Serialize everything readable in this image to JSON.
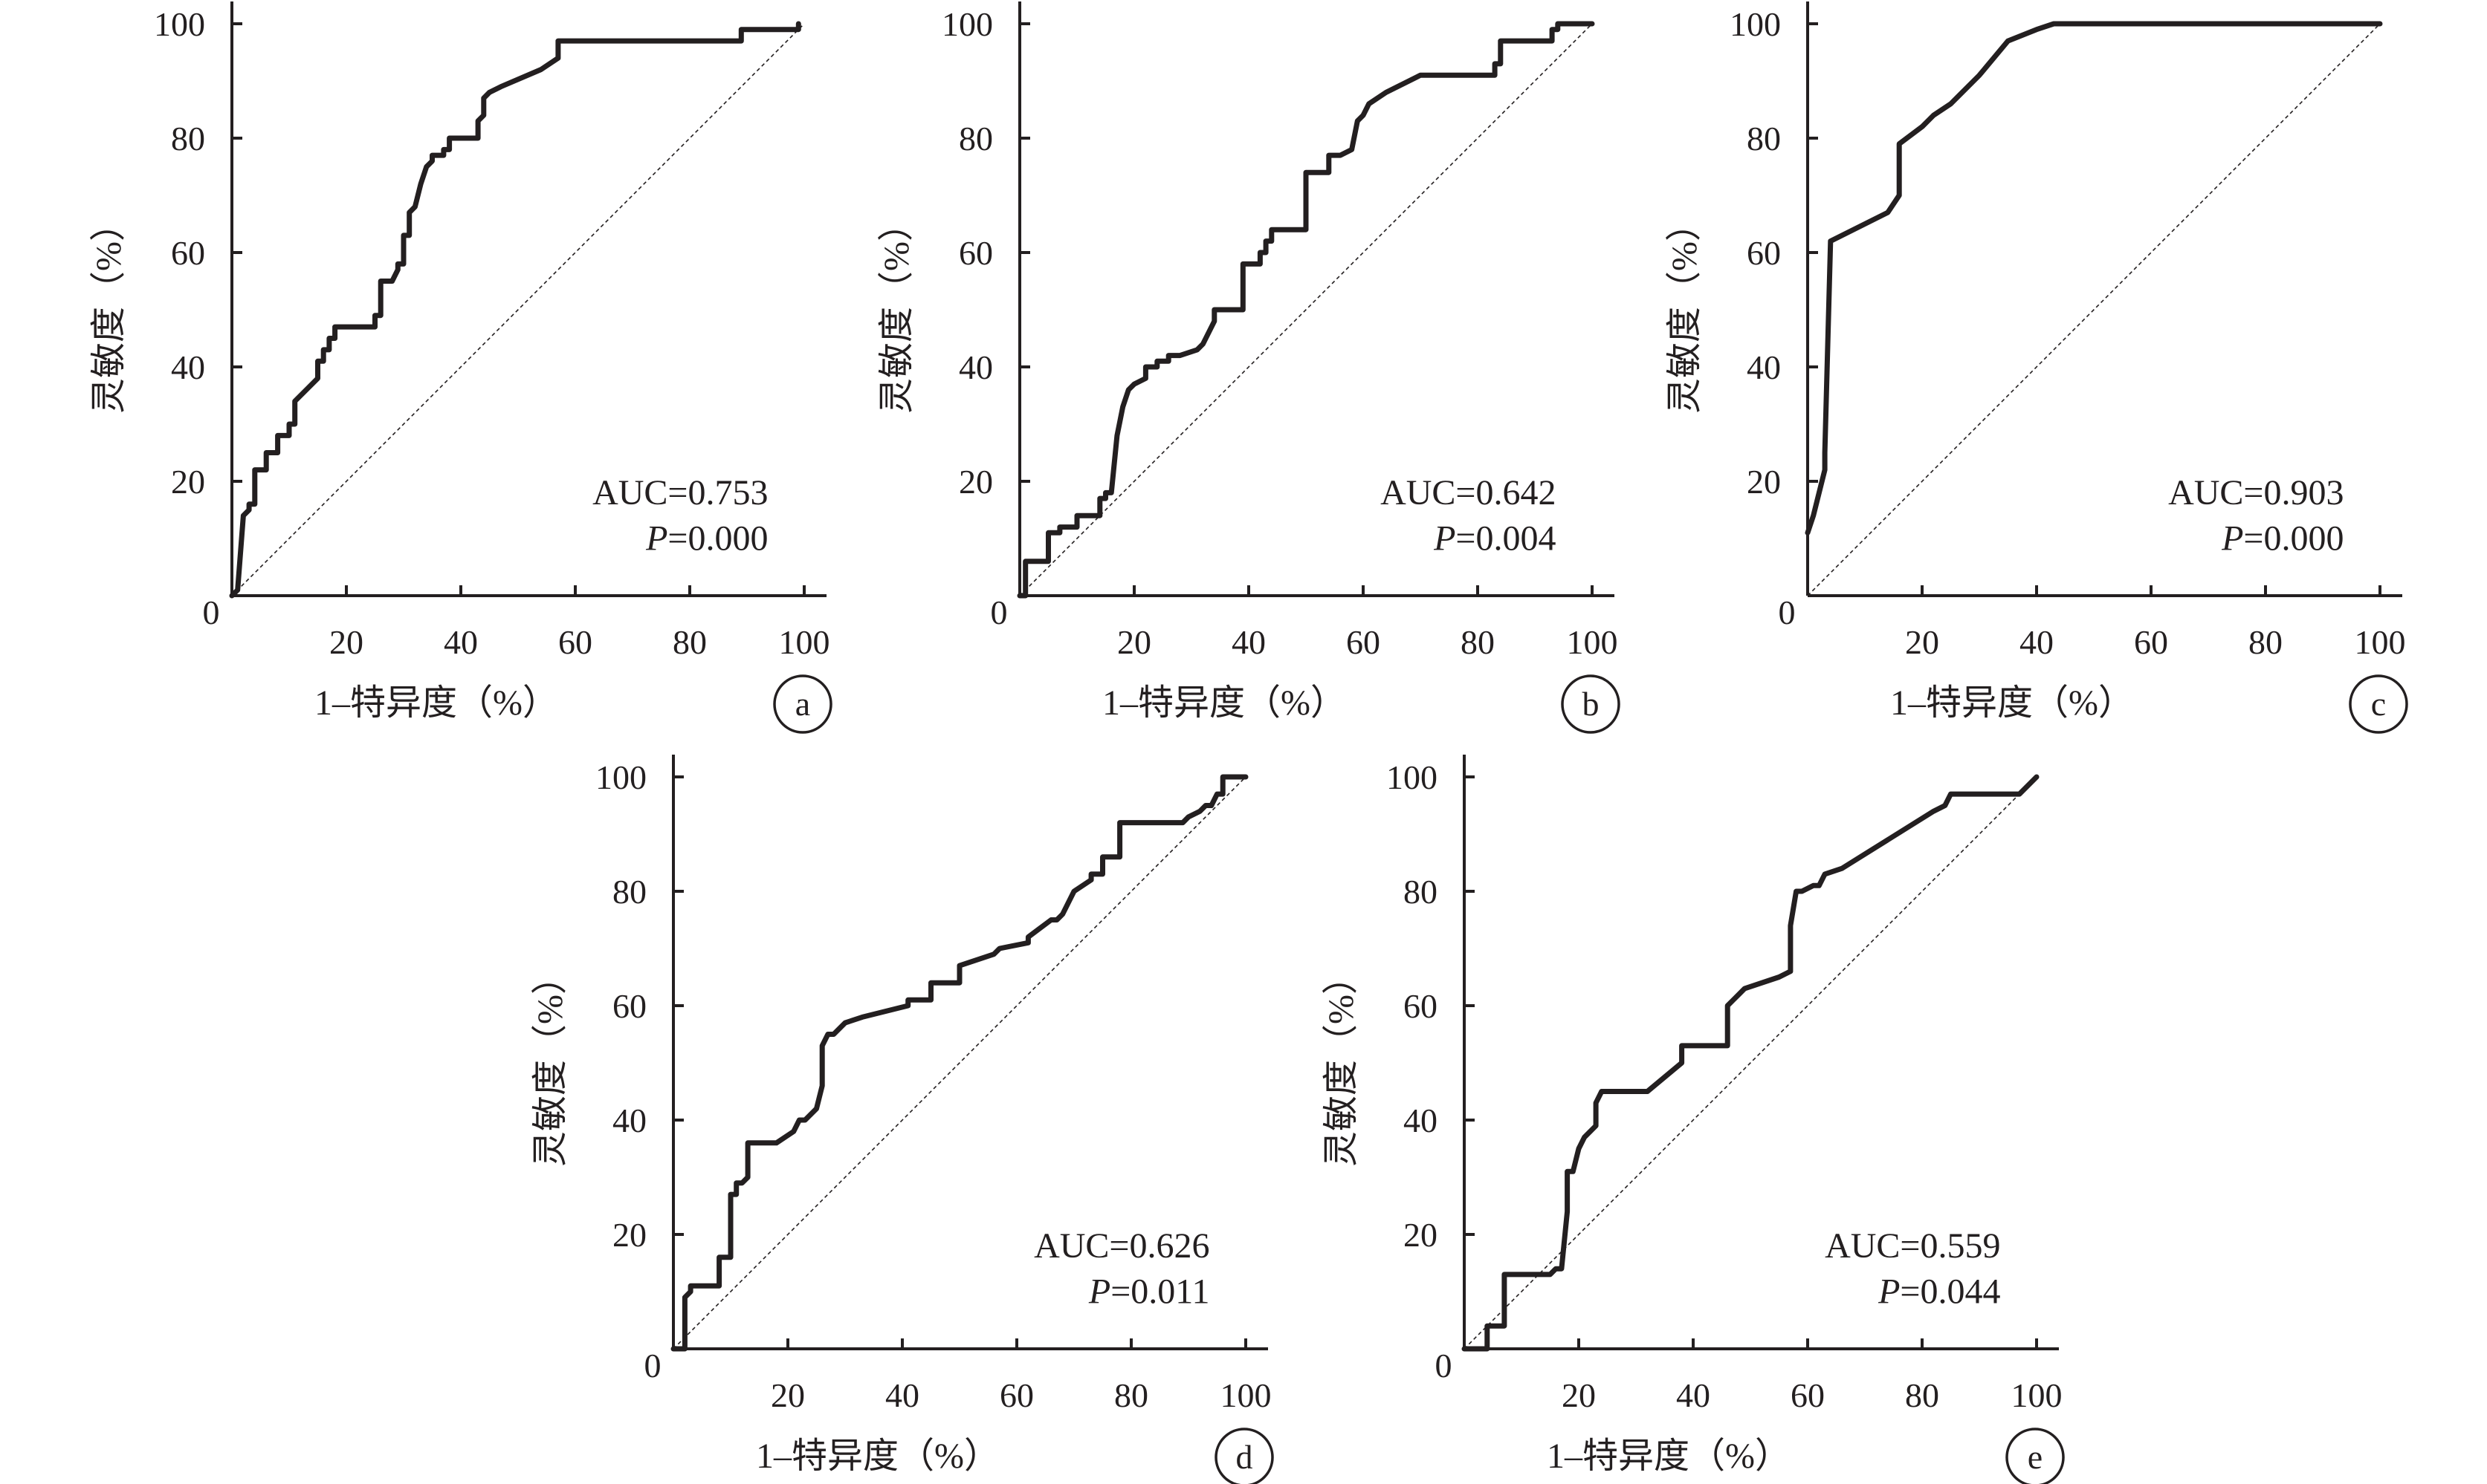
{
  "chart_data": [
    {
      "id": "a",
      "type": "line",
      "panel_label": "a",
      "xlabel": "1–特异度（%）",
      "ylabel": "灵敏度（%）",
      "xlim": [
        0,
        100
      ],
      "ylim": [
        0,
        100
      ],
      "xticks": [
        "20",
        "40",
        "60",
        "80",
        "100"
      ],
      "yticks": [
        "20",
        "40",
        "60",
        "80",
        "100"
      ],
      "origin_label": "0",
      "annotation_auc": "AUC=0.753",
      "annotation_p_letter": "P",
      "annotation_p_value": "=0.000",
      "reference_line": [
        [
          0,
          0
        ],
        [
          100,
          100
        ]
      ],
      "series": [
        {
          "x": [
            0,
            1,
            1,
            2,
            2,
            3,
            3,
            4,
            4,
            6,
            6,
            8,
            8,
            10,
            10,
            11,
            11,
            13,
            15,
            15,
            16,
            16,
            17,
            17,
            18,
            18,
            20,
            20,
            25,
            25,
            26,
            26,
            28,
            29,
            29,
            30,
            30,
            31,
            31,
            32,
            33,
            34,
            35,
            35,
            36,
            37,
            37,
            38,
            38,
            43,
            43,
            44,
            44,
            45,
            47,
            54,
            57,
            57,
            60,
            89,
            89,
            99,
            99
          ],
          "y": [
            0,
            1,
            1,
            14,
            14,
            15,
            16,
            16,
            22,
            22,
            25,
            25,
            28,
            28,
            30,
            30,
            34,
            36,
            38,
            41,
            41,
            43,
            43,
            45,
            45,
            47,
            47,
            47,
            47,
            49,
            49,
            55,
            55,
            57,
            58,
            58,
            63,
            63,
            67,
            68,
            72,
            75,
            76,
            77,
            77,
            77,
            78,
            78,
            80,
            80,
            83,
            84,
            87,
            88,
            89,
            92,
            94,
            97,
            97,
            97,
            99,
            99,
            100
          ]
        }
      ]
    },
    {
      "id": "b",
      "type": "line",
      "panel_label": "b",
      "xlabel": "1–特异度（%）",
      "ylabel": "灵敏度（%）",
      "xlim": [
        0,
        100
      ],
      "ylim": [
        0,
        100
      ],
      "xticks": [
        "20",
        "40",
        "60",
        "80",
        "100"
      ],
      "yticks": [
        "20",
        "40",
        "60",
        "80",
        "100"
      ],
      "origin_label": "0",
      "annotation_auc": "AUC=0.642",
      "annotation_p_letter": "P",
      "annotation_p_value": "=0.004",
      "reference_line": [
        [
          0,
          0
        ],
        [
          100,
          100
        ]
      ],
      "series": [
        {
          "x": [
            0,
            1,
            1,
            5,
            5,
            7,
            7,
            10,
            10,
            14,
            14,
            15,
            15,
            16,
            17,
            17,
            18,
            19,
            20,
            22,
            22,
            24,
            24,
            26,
            26,
            28,
            31,
            32,
            32,
            34,
            34,
            39,
            39,
            42,
            42,
            43,
            43,
            44,
            44,
            50,
            50,
            54,
            54,
            56,
            58,
            58,
            59,
            60,
            61,
            64,
            64,
            70,
            83,
            83,
            84,
            84,
            93,
            93,
            94,
            94,
            100
          ],
          "y": [
            0,
            0,
            6,
            6,
            11,
            11,
            12,
            12,
            14,
            14,
            17,
            17,
            18,
            18,
            28,
            28,
            33,
            36,
            37,
            38,
            40,
            40,
            41,
            41,
            42,
            42,
            43,
            44,
            44,
            48,
            50,
            50,
            58,
            58,
            60,
            60,
            62,
            62,
            64,
            64,
            74,
            74,
            77,
            77,
            78,
            78,
            83,
            84,
            86,
            88,
            88,
            91,
            91,
            93,
            93,
            97,
            97,
            99,
            99,
            100,
            100
          ]
        }
      ]
    },
    {
      "id": "c",
      "type": "line",
      "panel_label": "c",
      "xlabel": "1–特异度（%）",
      "ylabel": "灵敏度（%）",
      "xlim": [
        0,
        100
      ],
      "ylim": [
        0,
        100
      ],
      "xticks": [
        "20",
        "40",
        "60",
        "80",
        "100"
      ],
      "yticks": [
        "20",
        "40",
        "60",
        "80",
        "100"
      ],
      "origin_label": "0",
      "annotation_auc": "AUC=0.903",
      "annotation_p_letter": "P",
      "annotation_p_value": "=0.000",
      "reference_line": [
        [
          0,
          0
        ],
        [
          100,
          100
        ]
      ],
      "series": [
        {
          "x": [
            0,
            1,
            2,
            3,
            3,
            4,
            14,
            16,
            16,
            20,
            22,
            25,
            30,
            35,
            40,
            43,
            60,
            100
          ],
          "y": [
            11,
            14,
            18,
            22,
            25,
            62,
            67,
            70,
            79,
            82,
            84,
            86,
            91,
            97,
            99,
            100,
            100,
            100
          ]
        }
      ]
    },
    {
      "id": "d",
      "type": "line",
      "panel_label": "d",
      "xlabel": "1–特异度（%）",
      "ylabel": "灵敏度（%）",
      "xlim": [
        0,
        100
      ],
      "ylim": [
        0,
        100
      ],
      "xticks": [
        "20",
        "40",
        "60",
        "80",
        "100"
      ],
      "yticks": [
        "20",
        "40",
        "60",
        "80",
        "100"
      ],
      "origin_label": "0",
      "annotation_auc": "AUC=0.626",
      "annotation_p_letter": "P",
      "annotation_p_value": "=0.011",
      "reference_line": [
        [
          0,
          0
        ],
        [
          100,
          100
        ]
      ],
      "series": [
        {
          "x": [
            0,
            2,
            2,
            3,
            3,
            8,
            8,
            10,
            10,
            11,
            11,
            12,
            13,
            13,
            18,
            18,
            21,
            22,
            23,
            25,
            26,
            26,
            27,
            28,
            30,
            33,
            41,
            41,
            45,
            45,
            50,
            50,
            56,
            57,
            62,
            62,
            66,
            67,
            68,
            70,
            73,
            73,
            75,
            75,
            78,
            78,
            85,
            89,
            90,
            92,
            93,
            94,
            95,
            96,
            96,
            100
          ],
          "y": [
            0,
            0,
            9,
            10,
            11,
            11,
            16,
            16,
            27,
            27,
            29,
            29,
            30,
            36,
            36,
            36,
            38,
            40,
            40,
            42,
            46,
            53,
            55,
            55,
            57,
            58,
            60,
            61,
            61,
            64,
            64,
            67,
            69,
            70,
            71,
            72,
            75,
            75,
            76,
            80,
            82,
            83,
            83,
            86,
            86,
            92,
            92,
            92,
            93,
            94,
            95,
            95,
            97,
            97,
            100,
            100
          ]
        }
      ]
    },
    {
      "id": "e",
      "type": "line",
      "panel_label": "e",
      "xlabel": "1–特异度（%）",
      "ylabel": "灵敏度（%）",
      "xlim": [
        0,
        100
      ],
      "ylim": [
        0,
        100
      ],
      "xticks": [
        "20",
        "40",
        "60",
        "80",
        "100"
      ],
      "yticks": [
        "20",
        "40",
        "60",
        "80",
        "100"
      ],
      "origin_label": "0",
      "annotation_auc": "AUC=0.559",
      "annotation_p_letter": "P",
      "annotation_p_value": "=0.044",
      "reference_line": [
        [
          0,
          0
        ],
        [
          100,
          100
        ]
      ],
      "series": [
        {
          "x": [
            0,
            4,
            4,
            7,
            7,
            15,
            16,
            17,
            18,
            18,
            19,
            19,
            20,
            21,
            23,
            23,
            24,
            32,
            38,
            38,
            46,
            46,
            47,
            48,
            49,
            55,
            57,
            57,
            58,
            59,
            59,
            61,
            62,
            63,
            66,
            74,
            82,
            84,
            85,
            97,
            100
          ],
          "y": [
            0,
            0,
            4,
            4,
            13,
            13,
            14,
            14,
            24,
            31,
            31,
            31,
            35,
            37,
            39,
            43,
            45,
            45,
            50,
            53,
            53,
            60,
            61,
            62,
            63,
            65,
            66,
            74,
            80,
            80,
            80,
            81,
            81,
            83,
            84,
            89,
            94,
            95,
            97,
            97,
            100
          ]
        }
      ]
    }
  ]
}
